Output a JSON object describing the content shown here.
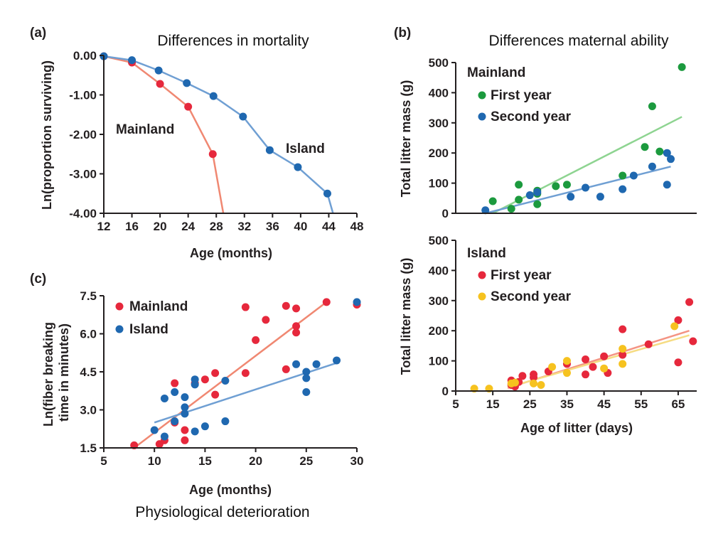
{
  "figure": {
    "bottom_caption": "Physiological deterioration"
  },
  "colors": {
    "mainland_red": "#e6283c",
    "island_blue": "#1f68b0",
    "mainland_line": "#f08872",
    "island_line": "#6f9fd3",
    "green": "#1c9a3e",
    "green_line": "#8ed491",
    "yellow": "#f6c21f",
    "yellow_line": "#f6dc83",
    "salmon_line": "#f49483"
  },
  "chart_data": [
    {
      "id": "a",
      "letter": "(a)",
      "type": "line",
      "title": "Differences in mortality",
      "xlabel": "Age (months)",
      "ylabel": "Ln(proportion surviving)",
      "xlim": [
        12,
        48
      ],
      "ylim": [
        -4,
        0
      ],
      "xticks": [
        "12",
        "16",
        "20",
        "24",
        "28",
        "32",
        "36",
        "40",
        "44",
        "48"
      ],
      "yticks": [
        "0.00",
        "-1.00",
        "-2.00",
        "-3.00",
        "-4.00"
      ],
      "annotations": [
        "Mainland",
        "Island"
      ],
      "series": [
        {
          "name": "Mainland",
          "color": "#e6283c",
          "line_color": "#f08872",
          "points": [
            [
              12,
              -0.02
            ],
            [
              16,
              -0.18
            ],
            [
              20,
              -0.72
            ],
            [
              24,
              -1.3
            ],
            [
              27.5,
              -2.5
            ]
          ],
          "line_extension": [
            [
              29,
              -4.0
            ]
          ]
        },
        {
          "name": "Island",
          "color": "#1f68b0",
          "line_color": "#6f9fd3",
          "points": [
            [
              12,
              -0.02
            ],
            [
              16,
              -0.12
            ],
            [
              19.8,
              -0.38
            ],
            [
              23.8,
              -0.7
            ],
            [
              27.6,
              -1.03
            ],
            [
              31.8,
              -1.55
            ],
            [
              35.6,
              -2.4
            ],
            [
              39.6,
              -2.83
            ],
            [
              43.8,
              -3.5
            ]
          ],
          "line_extension": [
            [
              44.6,
              -4.0
            ]
          ]
        }
      ]
    },
    {
      "id": "b-top",
      "letter": "(b)",
      "type": "scatter",
      "title": "Differences maternal ability",
      "ylabel": "Total litter mass (g)",
      "xlim": [
        5,
        70
      ],
      "ylim": [
        0,
        500
      ],
      "yticks": [
        "500",
        "400",
        "300",
        "200",
        "100",
        "0"
      ],
      "legend_title": "Mainland",
      "series": [
        {
          "name": "First year",
          "color": "#1c9a3e",
          "points": [
            [
              15,
              40
            ],
            [
              20,
              15
            ],
            [
              22,
              45
            ],
            [
              22,
              95
            ],
            [
              27,
              65
            ],
            [
              27,
              75
            ],
            [
              27,
              30
            ],
            [
              32,
              90
            ],
            [
              35,
              95
            ],
            [
              50,
              125
            ],
            [
              56,
              220
            ],
            [
              58,
              355
            ],
            [
              60,
              205
            ],
            [
              66,
              485
            ]
          ],
          "trend": [
            [
              15,
              0
            ],
            [
              66,
              320
            ]
          ],
          "trend_color": "#8ed491"
        },
        {
          "name": "Second year",
          "color": "#1f68b0",
          "points": [
            [
              13,
              10
            ],
            [
              25,
              60
            ],
            [
              27,
              70
            ],
            [
              36,
              55
            ],
            [
              40,
              85
            ],
            [
              44,
              55
            ],
            [
              50,
              80
            ],
            [
              53,
              125
            ],
            [
              58,
              155
            ],
            [
              62,
              200
            ],
            [
              62,
              95
            ],
            [
              63,
              180
            ]
          ],
          "trend": [
            [
              13,
              0
            ],
            [
              63,
              155
            ]
          ],
          "trend_color": "#6f9fd3"
        }
      ]
    },
    {
      "id": "b-bottom",
      "type": "scatter",
      "xlabel": "Age of litter (days)",
      "ylabel": "Total litter mass (g)",
      "xlim": [
        5,
        70
      ],
      "ylim": [
        0,
        500
      ],
      "xticks": [
        "5",
        "15",
        "25",
        "35",
        "45",
        "55",
        "65"
      ],
      "yticks": [
        "500",
        "400",
        "300",
        "200",
        "100",
        "0"
      ],
      "legend_title": "Island",
      "series": [
        {
          "name": "First year",
          "color": "#e6283c",
          "points": [
            [
              20,
              35
            ],
            [
              20,
              20
            ],
            [
              21,
              15
            ],
            [
              22,
              30
            ],
            [
              23,
              50
            ],
            [
              26,
              55
            ],
            [
              26,
              45
            ],
            [
              30,
              65
            ],
            [
              35,
              90
            ],
            [
              40,
              105
            ],
            [
              40,
              55
            ],
            [
              42,
              80
            ],
            [
              45,
              115
            ],
            [
              46,
              60
            ],
            [
              50,
              205
            ],
            [
              50,
              120
            ],
            [
              57,
              155
            ],
            [
              65,
              235
            ],
            [
              65,
              95
            ],
            [
              68,
              295
            ],
            [
              69,
              165
            ]
          ],
          "trend": [
            [
              19,
              10
            ],
            [
              68,
              200
            ]
          ],
          "trend_color": "#f49483"
        },
        {
          "name": "Second year",
          "color": "#f6c21f",
          "points": [
            [
              10,
              8
            ],
            [
              14,
              8
            ],
            [
              20,
              25
            ],
            [
              21,
              28
            ],
            [
              26,
              25
            ],
            [
              28,
              20
            ],
            [
              31,
              80
            ],
            [
              35,
              100
            ],
            [
              35,
              60
            ],
            [
              45,
              75
            ],
            [
              50,
              140
            ],
            [
              50,
              90
            ],
            [
              64,
              215
            ]
          ],
          "trend": [
            [
              19,
              12
            ],
            [
              68,
              185
            ]
          ],
          "trend_color": "#f6dc83"
        }
      ]
    },
    {
      "id": "c",
      "letter": "(c)",
      "type": "scatter",
      "xlabel": "Age (months)",
      "ylabel": "Ln(fiber breaking time in minutes)",
      "ylabel_lines": [
        "Ln(fiber breaking",
        "time in minutes)"
      ],
      "xlim": [
        5,
        30
      ],
      "ylim": [
        1.5,
        7.5
      ],
      "xticks": [
        "5",
        "10",
        "15",
        "20",
        "25",
        "30"
      ],
      "yticks": [
        "7.5",
        "6.0",
        "4.5",
        "3.0",
        "1.5"
      ],
      "series": [
        {
          "name": "Mainland",
          "color": "#e6283c",
          "points": [
            [
              8,
              1.6
            ],
            [
              10.5,
              1.65
            ],
            [
              11,
              1.8
            ],
            [
              12,
              2.5
            ],
            [
              12,
              4.05
            ],
            [
              13,
              1.8
            ],
            [
              13,
              2.2
            ],
            [
              14,
              4.05
            ],
            [
              15,
              4.2
            ],
            [
              16,
              3.6
            ],
            [
              16,
              4.45
            ],
            [
              19,
              7.05
            ],
            [
              19,
              4.45
            ],
            [
              20,
              5.75
            ],
            [
              21,
              6.55
            ],
            [
              23,
              7.1
            ],
            [
              23,
              4.6
            ],
            [
              24,
              7.0
            ],
            [
              24,
              6.3
            ],
            [
              24,
              6.05
            ],
            [
              27,
              7.25
            ],
            [
              30,
              7.15
            ]
          ],
          "trend": [
            [
              8,
              1.5
            ],
            [
              27,
              7.25
            ]
          ],
          "trend_color": "#f08872"
        },
        {
          "name": "Island",
          "color": "#1f68b0",
          "points": [
            [
              10,
              2.2
            ],
            [
              11,
              1.95
            ],
            [
              11,
              3.45
            ],
            [
              12,
              3.7
            ],
            [
              12,
              2.55
            ],
            [
              13,
              3.5
            ],
            [
              13,
              3.1
            ],
            [
              13,
              2.85
            ],
            [
              14,
              4.2
            ],
            [
              14,
              4.0
            ],
            [
              14,
              2.15
            ],
            [
              15,
              2.35
            ],
            [
              17,
              4.15
            ],
            [
              17,
              2.55
            ],
            [
              24,
              4.8
            ],
            [
              25,
              4.5
            ],
            [
              25,
              4.25
            ],
            [
              25,
              3.7
            ],
            [
              26,
              4.8
            ],
            [
              28,
              4.95
            ],
            [
              30,
              7.25
            ]
          ],
          "trend": [
            [
              10,
              2.5
            ],
            [
              28,
              4.85
            ]
          ],
          "trend_color": "#6f9fd3"
        }
      ]
    }
  ]
}
